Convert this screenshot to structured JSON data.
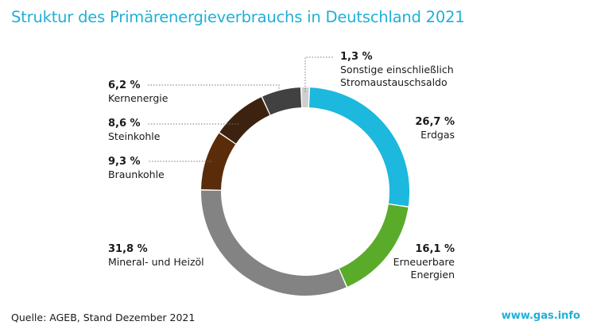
{
  "title": "Struktur des Primärenergieverbrauchs in Deutschland 2021",
  "source": "Quelle: AGEB, Stand Dezember 2021",
  "brand": "www.gas.info",
  "colors": {
    "title": "#1fb0d6",
    "leader": "#777777"
  },
  "chart_data": {
    "type": "pie",
    "donut": true,
    "title": "Struktur des Primärenergieverbrauchs in Deutschland 2021",
    "unit": "%",
    "segments": [
      {
        "name": "Sonstige einschließlich Stromaustauschsaldo",
        "value": 1.3,
        "value_label": "1,3 %",
        "color": "#cfcfcf",
        "label_lines": [
          "Sonstige einschließlich",
          "Stromaustauschsaldo"
        ]
      },
      {
        "name": "Erdgas",
        "value": 26.7,
        "value_label": "26,7 %",
        "color": "#1cb8dd",
        "label_lines": [
          "Erdgas"
        ]
      },
      {
        "name": "Erneuerbare Energien",
        "value": 16.1,
        "value_label": "16,1 %",
        "color": "#5aab2a",
        "label_lines": [
          "Erneuerbare",
          "Energien"
        ]
      },
      {
        "name": "Mineral- und Heizöl",
        "value": 31.8,
        "value_label": "31,8 %",
        "color": "#838383",
        "label_lines": [
          "Mineral- und Heizöl"
        ]
      },
      {
        "name": "Braunkohle",
        "value": 9.3,
        "value_label": "9,3 %",
        "color": "#5a2c0a",
        "label_lines": [
          "Braunkohle"
        ]
      },
      {
        "name": "Steinkohle",
        "value": 8.6,
        "value_label": "8,6 %",
        "color": "#3e2210",
        "label_lines": [
          "Steinkohle"
        ]
      },
      {
        "name": "Kernenergie",
        "value": 6.2,
        "value_label": "6,2 %",
        "color": "#414141",
        "label_lines": [
          "Kernenergie"
        ]
      }
    ]
  }
}
